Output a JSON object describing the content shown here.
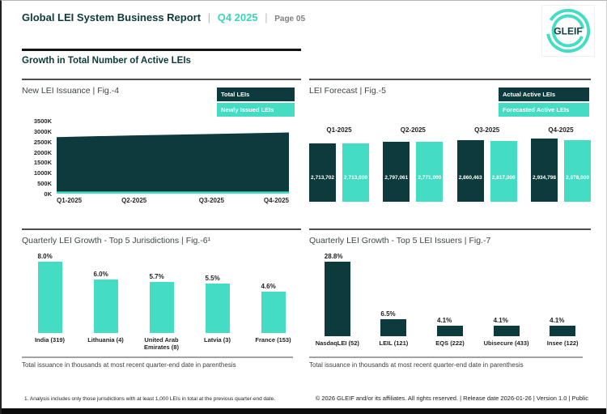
{
  "header": {
    "title": "Global LEI System Business Report",
    "separator": "|",
    "period": "Q4 2025",
    "page": "Page 05",
    "logo_text": "GLEIF"
  },
  "section": {
    "title": "Growth in Total Number of Active LEIs"
  },
  "colors": {
    "dark_teal": "#0d3b3d",
    "turquoise": "#45dcc4",
    "accent_text": "#3ed2bc",
    "header_teal": "#0e3a3c"
  },
  "panels": {
    "fig4": {
      "legend": [
        {
          "label": "Total LEIs"
        },
        {
          "label": "Newly Issued LEIs"
        }
      ]
    },
    "fig5": {
      "legend": [
        {
          "label": "Actual Active LEIs"
        },
        {
          "label": "Forecasted Active LEIs"
        }
      ]
    }
  },
  "chart_data": [
    {
      "type": "area",
      "title": "New LEI Issuance | Fig.-4",
      "x": [
        "Q1-2025",
        "Q2-2025",
        "Q3-2025",
        "Q4-2025"
      ],
      "series": [
        {
          "name": "Total LEIs",
          "color": "#0d3b3d",
          "values": [
            2713702,
            2797061,
            2860463,
            2934798
          ]
        },
        {
          "name": "Newly Issued LEIs",
          "color": "#45dcc4",
          "values": [
            100000,
            100000,
            100000,
            100000
          ],
          "estimated": true
        }
      ],
      "ylim": [
        0,
        3500000
      ],
      "yticks": [
        "0K",
        "500K",
        "1000K",
        "1500K",
        "2000K",
        "2500K",
        "3000K",
        "3500K"
      ],
      "legend_position": "top-right",
      "grid": false
    },
    {
      "type": "bar",
      "title": "LEI Forecast | Fig.-5",
      "categories": [
        "Q1-2025",
        "Q2-2025",
        "Q3-2025",
        "Q4-2025"
      ],
      "series": [
        {
          "name": "Actual Active LEIs",
          "color": "#0d3b3d",
          "values": [
            2713702,
            2797061,
            2860463,
            2934798
          ],
          "labels": [
            "2,713,702",
            "2,797,061",
            "2,860,463",
            "2,934,798"
          ]
        },
        {
          "name": "Forecasted Active LEIs",
          "color": "#45dcc4",
          "values": [
            2713000,
            2771000,
            2817000,
            2878000
          ],
          "labels": [
            "2,713,000",
            "2,771,000",
            "2,817,000",
            "2,878,000"
          ]
        }
      ],
      "legend_position": "top-right",
      "grid": false
    },
    {
      "type": "bar",
      "title": "Quarterly LEI Growth - Top 5 Jurisdictions | Fig.-6¹",
      "categories": [
        "India (319)",
        "Lithuania (4)",
        "United Arab Emirates (8)",
        "Latvia (3)",
        "France (153)"
      ],
      "values": [
        8.0,
        6.0,
        5.7,
        5.5,
        4.6
      ],
      "labels": [
        "8.0%",
        "6.0%",
        "5.7%",
        "5.5%",
        "4.6%"
      ],
      "bar_color": "#45dcc4",
      "grid": false
    },
    {
      "type": "bar",
      "title": "Quarterly LEI Growth - Top 5 LEI Issuers | Fig.-7",
      "categories": [
        "NasdaqLEI (52)",
        "LEIL (121)",
        "EQS (222)",
        "Ubisecure (433)",
        "Insee (122)"
      ],
      "values": [
        28.8,
        6.5,
        4.1,
        4.1,
        4.1
      ],
      "labels": [
        "28.8%",
        "6.5%",
        "4.1%",
        "4.1%",
        "4.1%"
      ],
      "bar_color": "#0d3b3d",
      "grid": false
    }
  ],
  "notes": {
    "issuance_note": "Total issuance in thousands at most recent quarter-end date in parenthesis"
  },
  "footer": {
    "footnote": "1. Analysis includes only those jurisdictions with at least 1,000 LEIs in total at the previous quarter-end date.",
    "copyright": "© 2026 GLEIF and/or its affiliates. All rights reserved.  |  Release date 2026-01-26  |  Version 1.0  |  Public"
  }
}
